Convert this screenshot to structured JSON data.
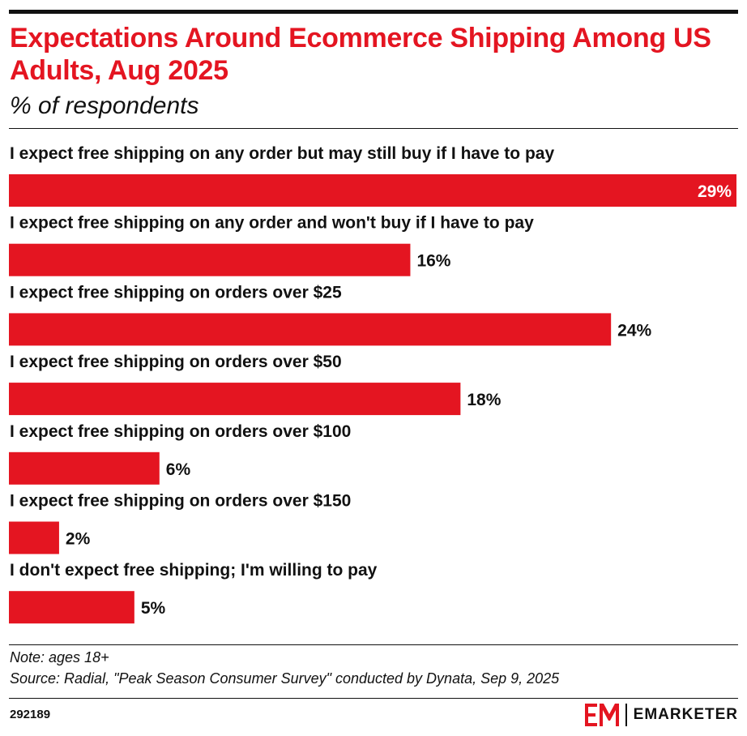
{
  "header": {
    "title": "Expectations Around Ecommerce Shipping Among US Adults, Aug 2025",
    "subtitle": "% of respondents"
  },
  "chart_data": {
    "type": "bar",
    "orientation": "horizontal",
    "title": "Expectations Around Ecommerce Shipping Among US Adults, Aug 2025",
    "subtitle": "% of respondents",
    "categories": [
      "I expect free shipping on any order but may still buy if I have to pay",
      "I expect free shipping on any order and won't buy if I have to pay",
      "I expect free shipping on orders over $25",
      "I expect free shipping on orders over $50",
      "I expect free shipping on orders over $100",
      "I expect free shipping on orders over $150",
      "I don't expect free shipping; I'm willing to pay"
    ],
    "values": [
      29,
      16,
      24,
      18,
      6,
      2,
      5
    ],
    "value_labels": [
      "29%",
      "16%",
      "24%",
      "18%",
      "6%",
      "2%",
      "5%"
    ],
    "xlim": [
      0,
      29
    ],
    "grid": false,
    "legend": "none",
    "bar_color": "#e41521"
  },
  "footer": {
    "note": "Note: ages 18+",
    "source": "Source: Radial, \"Peak Season Consumer Survey\" conducted by Dynata, Sep 9, 2025",
    "chart_id": "292189",
    "brand": "EMARKETER",
    "brand_mark": "EM"
  },
  "colors": {
    "accent": "#e41521",
    "text": "#111111"
  }
}
